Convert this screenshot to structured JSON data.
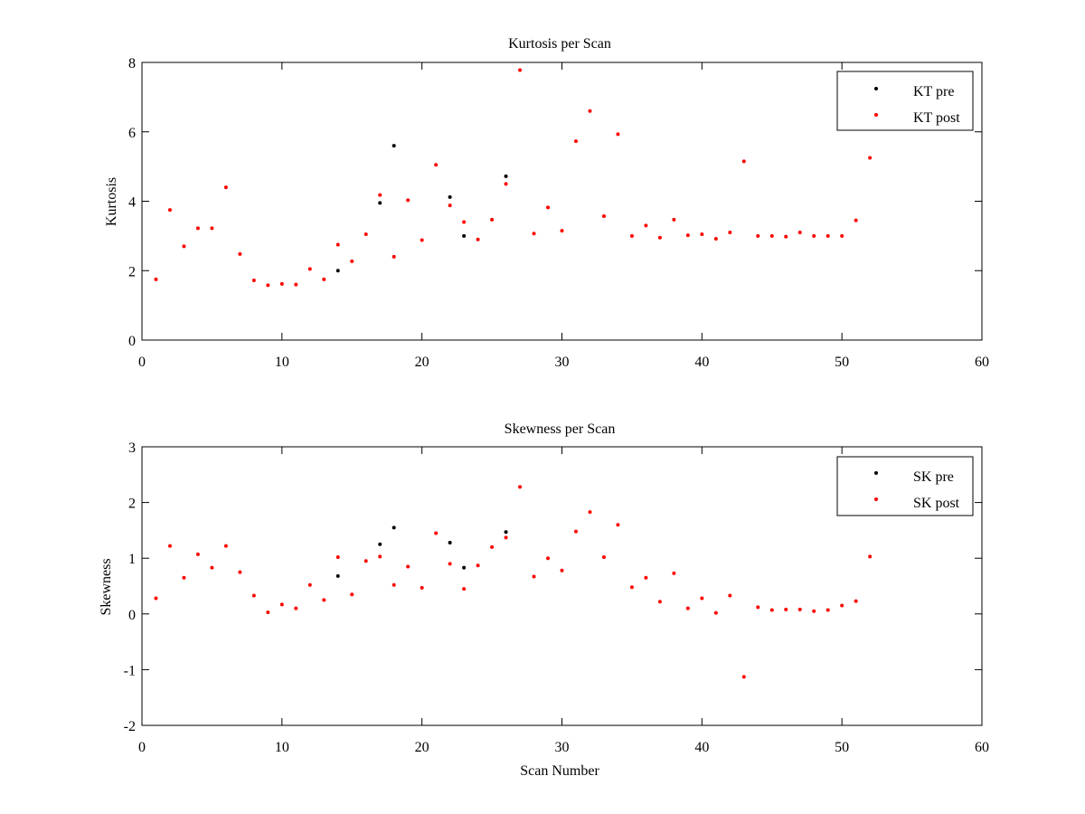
{
  "chart_data": [
    {
      "type": "scatter",
      "title": "Kurtosis per Scan",
      "xlabel": "",
      "ylabel": "Kurtosis",
      "xlim": [
        0,
        60
      ],
      "ylim": [
        0,
        8
      ],
      "xticks": [
        0,
        10,
        20,
        30,
        40,
        50,
        60
      ],
      "yticks": [
        0,
        2,
        4,
        6,
        8
      ],
      "legend_position": "top-right",
      "series": [
        {
          "name": "KT pre",
          "color": "#000000",
          "x": [
            14,
            17,
            18,
            22,
            23,
            26
          ],
          "y": [
            2.0,
            3.95,
            5.6,
            4.12,
            3.0,
            4.72
          ]
        },
        {
          "name": "KT post",
          "color": "#ff0000",
          "x": [
            1,
            2,
            3,
            4,
            5,
            6,
            7,
            8,
            9,
            10,
            11,
            12,
            13,
            14,
            15,
            16,
            17,
            18,
            19,
            20,
            21,
            22,
            23,
            24,
            25,
            26,
            27,
            28,
            29,
            30,
            31,
            32,
            33,
            34,
            35,
            36,
            37,
            38,
            39,
            40,
            41,
            42,
            43,
            44,
            45,
            46,
            47,
            48,
            49,
            50,
            51,
            52
          ],
          "y": [
            1.75,
            3.75,
            2.7,
            3.22,
            3.22,
            4.4,
            2.48,
            1.72,
            1.58,
            1.62,
            1.6,
            2.05,
            1.75,
            2.75,
            2.27,
            3.05,
            4.18,
            2.4,
            4.03,
            2.88,
            5.05,
            3.88,
            3.4,
            2.9,
            3.47,
            4.5,
            7.78,
            3.07,
            3.82,
            3.15,
            5.73,
            6.6,
            3.57,
            5.93,
            3.0,
            3.3,
            2.95,
            3.47,
            3.02,
            3.05,
            2.92,
            3.1,
            5.15,
            3.0,
            3.0,
            2.98,
            3.1,
            3.0,
            3.0,
            3.0,
            3.45,
            5.25
          ]
        }
      ]
    },
    {
      "type": "scatter",
      "title": "Skewness per Scan",
      "xlabel": "Scan Number",
      "ylabel": "Skewness",
      "xlim": [
        0,
        60
      ],
      "ylim": [
        -2,
        3
      ],
      "xticks": [
        0,
        10,
        20,
        30,
        40,
        50,
        60
      ],
      "yticks": [
        -2,
        -1,
        0,
        1,
        2,
        3
      ],
      "legend_position": "top-right",
      "series": [
        {
          "name": "SK pre",
          "color": "#000000",
          "x": [
            14,
            17,
            18,
            22,
            23,
            26
          ],
          "y": [
            0.68,
            1.25,
            1.55,
            1.28,
            0.83,
            1.47
          ]
        },
        {
          "name": "SK post",
          "color": "#ff0000",
          "x": [
            1,
            2,
            3,
            4,
            5,
            6,
            7,
            8,
            9,
            10,
            11,
            12,
            13,
            14,
            15,
            16,
            17,
            18,
            19,
            20,
            21,
            22,
            23,
            24,
            25,
            26,
            27,
            28,
            29,
            30,
            31,
            32,
            33,
            34,
            35,
            36,
            37,
            38,
            39,
            40,
            41,
            42,
            43,
            44,
            45,
            46,
            47,
            48,
            49,
            50,
            51,
            52
          ],
          "y": [
            0.28,
            1.22,
            0.65,
            1.07,
            0.83,
            1.22,
            0.75,
            0.33,
            0.03,
            0.17,
            0.1,
            0.52,
            0.25,
            1.02,
            0.35,
            0.95,
            1.03,
            0.52,
            0.85,
            0.47,
            1.45,
            0.9,
            0.45,
            0.87,
            1.2,
            1.37,
            2.28,
            0.67,
            1.0,
            0.78,
            1.48,
            1.83,
            1.02,
            1.6,
            0.48,
            0.65,
            0.22,
            0.73,
            0.1,
            0.28,
            0.02,
            0.33,
            -1.13,
            0.12,
            0.07,
            0.08,
            0.08,
            0.05,
            0.07,
            0.15,
            0.23,
            1.03
          ]
        }
      ]
    }
  ]
}
